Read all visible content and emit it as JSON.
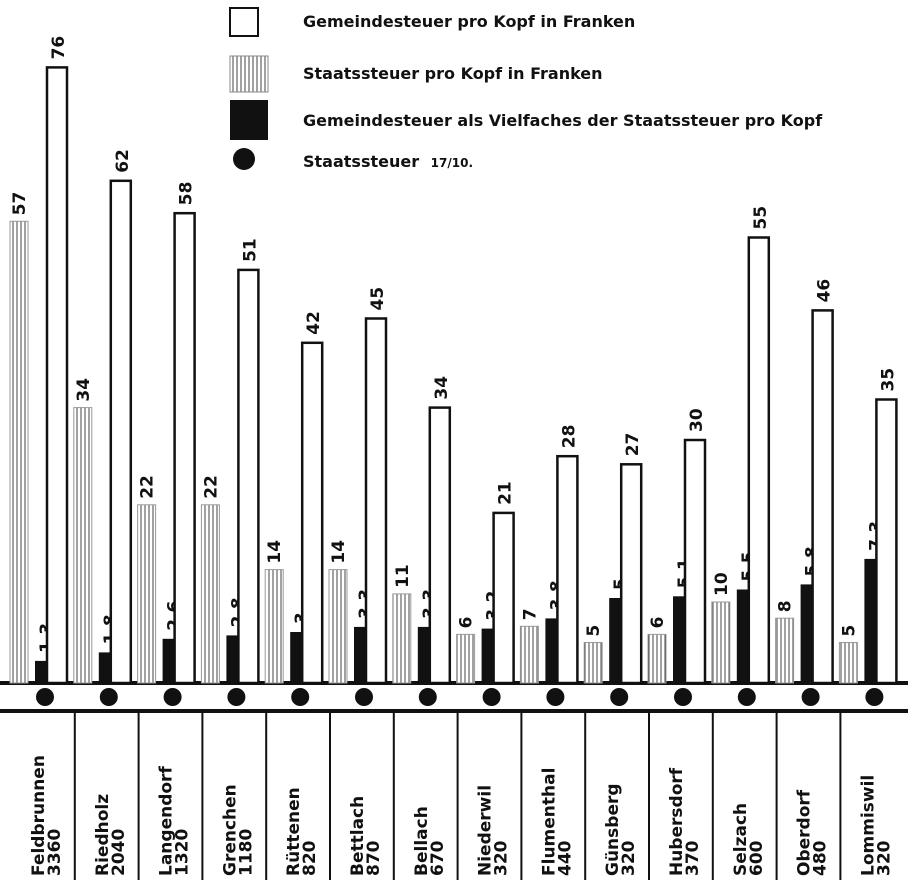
{
  "legend": [
    {
      "label": "Gemeindesteuer pro Kopf in Franken",
      "icon": "white-box-icon"
    },
    {
      "label": "Staatssteuer pro Kopf in Franken",
      "icon": "hatched-box-icon"
    },
    {
      "label": "Gemeindesteuer als Vielfaches der Staatssteuer pro Kopf",
      "icon": "black-box-icon"
    },
    {
      "label": "Staatssteuer",
      "suffix": "17/10.",
      "icon": "black-dot-icon"
    }
  ],
  "chart_data": {
    "type": "bar",
    "categories": [
      "Feldbrunnen",
      "Riedholz",
      "Langendorf",
      "Grenchen",
      "Rüttenen",
      "Bettlach",
      "Bellach",
      "Niederwil",
      "Flumenthal",
      "Günsberg",
      "Hubersdorf",
      "Selzach",
      "Oberdorf",
      "Lommiswil"
    ],
    "category_numbers": [
      "3360",
      "2040",
      "1320",
      "1180",
      "820",
      "870",
      "670",
      "320",
      "440",
      "320",
      "370",
      "600",
      "480",
      "320"
    ],
    "series": [
      {
        "name": "Staatssteuer pro Kopf in Franken",
        "values": [
          57,
          34,
          22,
          22,
          14,
          14,
          11,
          6,
          7,
          5,
          6,
          10,
          8,
          5
        ],
        "labels": [
          "57",
          "34",
          "22",
          "22",
          "14",
          "14",
          "11",
          "6",
          "7",
          "5",
          "6",
          "10",
          "8",
          "5"
        ]
      },
      {
        "name": "Gemeindesteuer als Vielfaches der Staatssteuer pro Kopf",
        "values": [
          1.3,
          1.8,
          2.6,
          2.8,
          3,
          3.3,
          3.3,
          3.2,
          3.8,
          5,
          5.1,
          5.5,
          5.8,
          7.3
        ],
        "labels": [
          "1,3",
          "1,8",
          "2,6",
          "2,8",
          "3",
          "3,3",
          "3,3",
          "3,2",
          "3,8",
          "5",
          "5,1",
          "5,5",
          "5,8",
          "7,3"
        ]
      },
      {
        "name": "Gemeindesteuer pro Kopf in Franken",
        "values": [
          76,
          62,
          58,
          51,
          42,
          45,
          34,
          21,
          28,
          27,
          30,
          55,
          46,
          35
        ],
        "labels": [
          "76",
          "62",
          "58",
          "51",
          "42",
          "45",
          "34",
          "21",
          "28",
          "27",
          "30",
          "55",
          "46",
          "35"
        ]
      }
    ],
    "legend_position": "top-right",
    "grid": false
  }
}
